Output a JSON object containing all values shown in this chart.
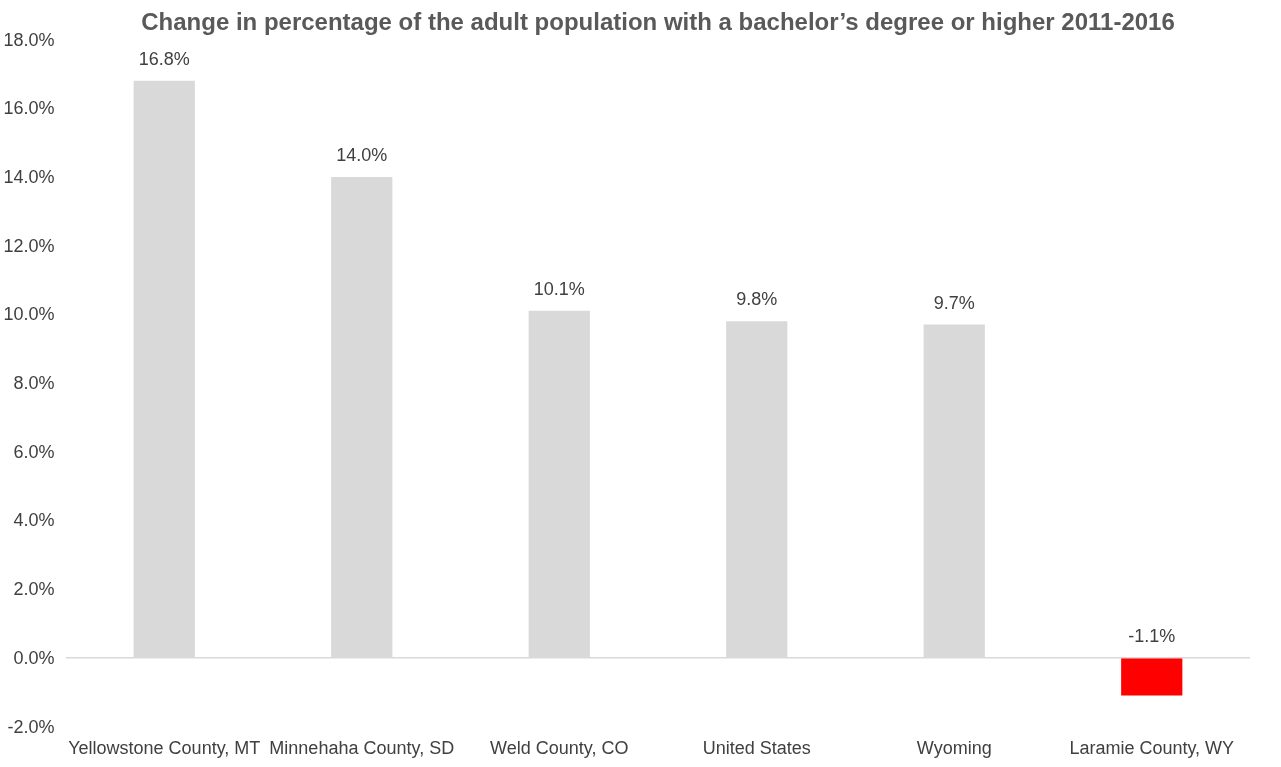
{
  "chart_data": {
    "type": "bar",
    "title": "Change in percentage of the adult population with a bachelor’s degree or higher 2011-2016",
    "categories": [
      "Yellowstone County, MT",
      "Minnehaha County, SD",
      "Weld County, CO",
      "United States",
      "Wyoming",
      "Laramie County, WY"
    ],
    "values": [
      16.8,
      14.0,
      10.1,
      9.8,
      9.7,
      -1.1
    ],
    "colors": [
      "#d9d9d9",
      "#d9d9d9",
      "#d9d9d9",
      "#d9d9d9",
      "#d9d9d9",
      "#ff0000"
    ],
    "value_labels": [
      "16.8%",
      "14.0%",
      "10.1%",
      "9.8%",
      "9.7%",
      "-1.1%"
    ],
    "ylim": [
      -2,
      18
    ],
    "yticks": [
      {
        "value": -2,
        "label": "-2.0%"
      },
      {
        "value": 0,
        "label": "0.0%"
      },
      {
        "value": 2,
        "label": "2.0%"
      },
      {
        "value": 4,
        "label": "4.0%"
      },
      {
        "value": 6,
        "label": "6.0%"
      },
      {
        "value": 8,
        "label": "8.0%"
      },
      {
        "value": 10,
        "label": "10.0%"
      },
      {
        "value": 12,
        "label": "12.0%"
      },
      {
        "value": 14,
        "label": "14.0%"
      },
      {
        "value": 16,
        "label": "16.0%"
      },
      {
        "value": 18,
        "label": "18.0%"
      }
    ],
    "ref_lines": [
      {
        "axis": "y",
        "value": 0,
        "color": "#d9d9d9"
      }
    ],
    "grid": false
  }
}
